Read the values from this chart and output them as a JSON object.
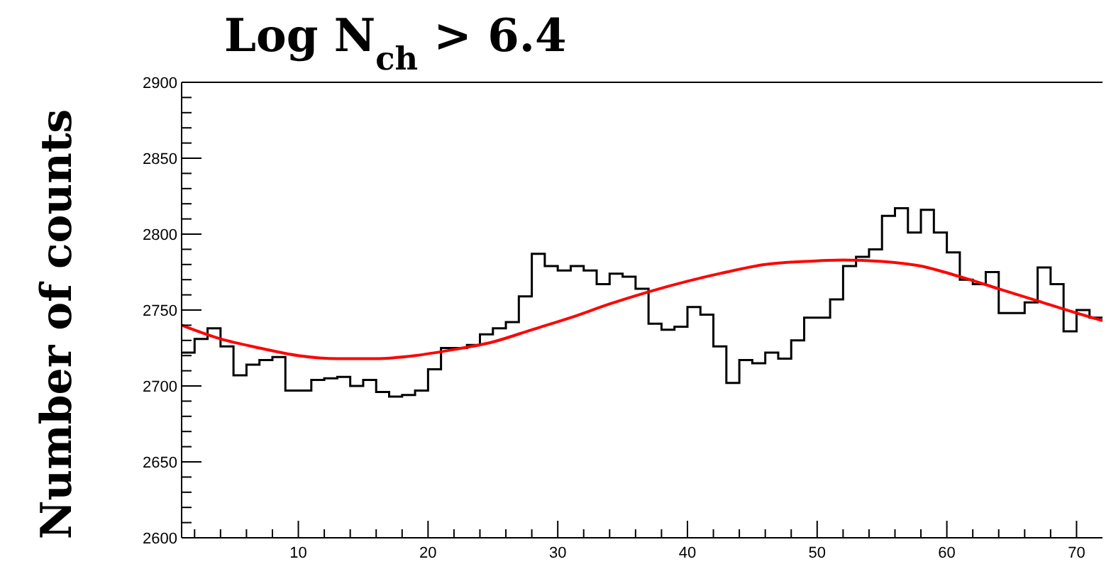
{
  "chart_data": {
    "type": "histogram",
    "title": "Log N$_{ch}$ > 6.4",
    "ylabel": "Number of counts",
    "bins": [
      1,
      2,
      3,
      4,
      5,
      6,
      7,
      8,
      9,
      10,
      11,
      12,
      13,
      14,
      15,
      16,
      17,
      18,
      19,
      20,
      21,
      22,
      23,
      24,
      25,
      26,
      27,
      28,
      29,
      30,
      31,
      32,
      33,
      34,
      35,
      36,
      37,
      38,
      39,
      40,
      41,
      42,
      43,
      44,
      45,
      46,
      47,
      48,
      49,
      50,
      51,
      52,
      53,
      54,
      55,
      56,
      57,
      58,
      59,
      60,
      61,
      62,
      63,
      64,
      65,
      66,
      67,
      68,
      69,
      70,
      71,
      72
    ],
    "values": [
      2722,
      2731,
      2738,
      2726,
      2707,
      2714,
      2717,
      2719,
      2697,
      2697,
      2704,
      2705,
      2706,
      2700,
      2704,
      2696,
      2693,
      2694,
      2697,
      2711,
      2725,
      2725,
      2727,
      2734,
      2738,
      2742,
      2759,
      2787,
      2779,
      2776,
      2779,
      2776,
      2767,
      2774,
      2772,
      2764,
      2741,
      2737,
      2739,
      2752,
      2747,
      2726,
      2702,
      2717,
      2715,
      2722,
      2718,
      2730,
      2745,
      2745,
      2757,
      2779,
      2785,
      2790,
      2812,
      2817,
      2801,
      2816,
      2801,
      2788,
      2770,
      2767,
      2775,
      2748,
      2748,
      2755,
      2778,
      2767,
      2736,
      2750,
      2745
    ],
    "color": "#000000",
    "series": [
      {
        "type": "line",
        "color": "#ff0000",
        "x": [
          1,
          4,
          7,
          10,
          13,
          16,
          19,
          22,
          25,
          28,
          31,
          34,
          37,
          40,
          43,
          46,
          49,
          52,
          55,
          58,
          61,
          64,
          67,
          70,
          72
        ],
        "values": [
          2740,
          2731,
          2725,
          2720,
          2718,
          2718,
          2720,
          2724,
          2729,
          2737,
          2745,
          2754,
          2762,
          2769,
          2775,
          2780,
          2782,
          2783,
          2782,
          2779,
          2772,
          2764,
          2756,
          2748,
          2743
        ]
      }
    ],
    "xlim": [
      1,
      72
    ],
    "ylim": [
      2600,
      2900
    ],
    "xticks": [
      {
        "value": 2,
        "label": null
      },
      {
        "value": 4,
        "label": null
      },
      {
        "value": 6,
        "label": null
      },
      {
        "value": 8,
        "label": null
      },
      10,
      {
        "value": 12,
        "label": null
      },
      {
        "value": 14,
        "label": null
      },
      {
        "value": 16,
        "label": null
      },
      {
        "value": 18,
        "label": null
      },
      20,
      {
        "value": 22,
        "label": null
      },
      {
        "value": 24,
        "label": null
      },
      {
        "value": 26,
        "label": null
      },
      {
        "value": 28,
        "label": null
      },
      30,
      {
        "value": 32,
        "label": null
      },
      {
        "value": 34,
        "label": null
      },
      {
        "value": 36,
        "label": null
      },
      {
        "value": 38,
        "label": null
      },
      40,
      {
        "value": 42,
        "label": null
      },
      {
        "value": 44,
        "label": null
      },
      {
        "value": 46,
        "label": null
      },
      {
        "value": 48,
        "label": null
      },
      50,
      {
        "value": 52,
        "label": null
      },
      {
        "value": 54,
        "label": null
      },
      {
        "value": 56,
        "label": null
      },
      {
        "value": 58,
        "label": null
      },
      60,
      {
        "value": 62,
        "label": null
      },
      {
        "value": 64,
        "label": null
      },
      {
        "value": 66,
        "label": null
      },
      {
        "value": 68,
        "label": null
      },
      70
    ],
    "yticks": [
      2600,
      {
        "value": 2610,
        "label": null
      },
      {
        "value": 2620,
        "label": null
      },
      {
        "value": 2630,
        "label": null
      },
      {
        "value": 2640,
        "label": null
      },
      2650,
      {
        "value": 2660,
        "label": null
      },
      {
        "value": 2670,
        "label": null
      },
      {
        "value": 2680,
        "label": null
      },
      {
        "value": 2690,
        "label": null
      },
      2700,
      {
        "value": 2710,
        "label": null
      },
      {
        "value": 2720,
        "label": null
      },
      {
        "value": 2730,
        "label": null
      },
      {
        "value": 2740,
        "label": null
      },
      2750,
      {
        "value": 2760,
        "label": null
      },
      {
        "value": 2770,
        "label": null
      },
      {
        "value": 2780,
        "label": null
      },
      {
        "value": 2790,
        "label": null
      },
      2800,
      {
        "value": 2810,
        "label": null
      },
      {
        "value": 2820,
        "label": null
      },
      {
        "value": 2830,
        "label": null
      },
      {
        "value": 2840,
        "label": null
      },
      2850,
      {
        "value": 2860,
        "label": null
      },
      {
        "value": 2870,
        "label": null
      },
      {
        "value": 2880,
        "label": null
      },
      {
        "value": 2890,
        "label": null
      },
      2900
    ]
  }
}
